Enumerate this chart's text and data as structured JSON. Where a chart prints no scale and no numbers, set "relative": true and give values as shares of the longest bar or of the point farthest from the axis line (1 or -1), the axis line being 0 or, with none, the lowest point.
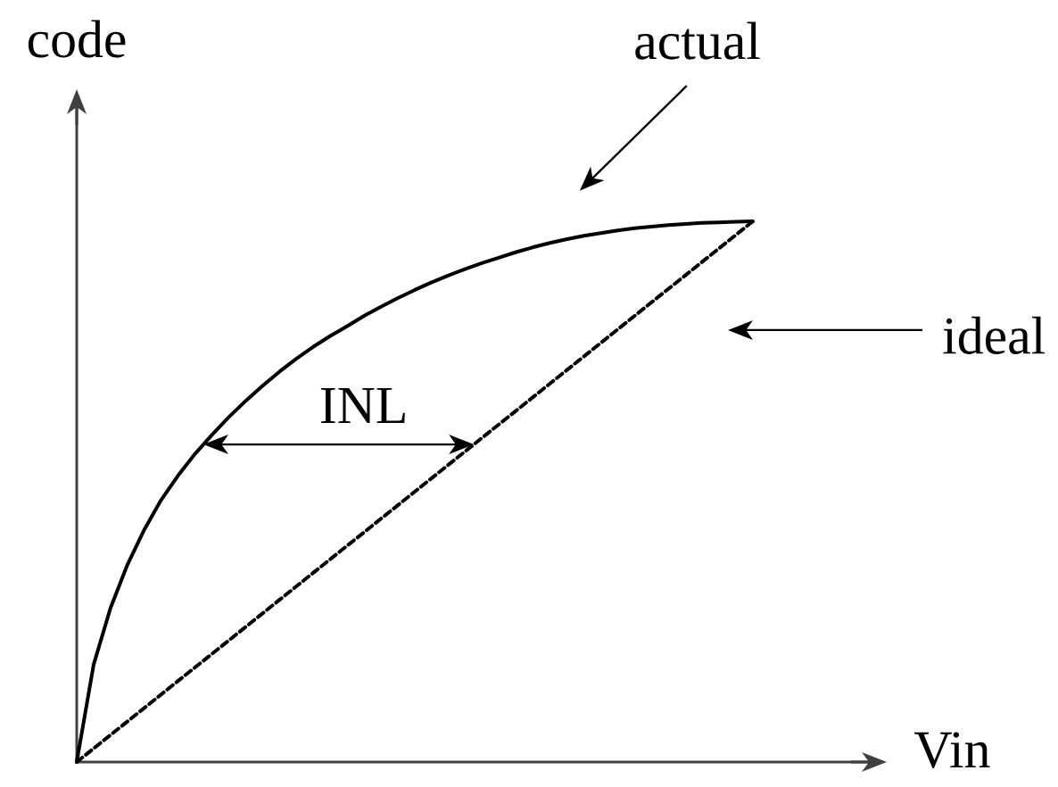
{
  "chart_data": {
    "type": "line",
    "relative": true,
    "xlabel": "Vin",
    "ylabel": "code",
    "categories": [
      null,
      null,
      null,
      null,
      null,
      null,
      null,
      null,
      null,
      null,
      null,
      null,
      null,
      null,
      null,
      null,
      null,
      null,
      null,
      null,
      null,
      null,
      null,
      null,
      null,
      null,
      null,
      null,
      null,
      null,
      null,
      null,
      null,
      null,
      null,
      null,
      null,
      null,
      null,
      null,
      null
    ],
    "series": [
      {
        "color": "#000000",
        "line_style": "solid",
        "values": [
          0,
          0.18,
          0.285,
          0.365,
          0.43,
          0.485,
          0.53,
          0.57,
          0.605,
          0.638,
          0.668,
          0.696,
          0.722,
          0.746,
          0.768,
          0.788,
          0.806,
          0.825,
          0.842,
          0.858,
          0.873,
          0.887,
          0.9,
          0.912,
          0.923,
          0.933,
          0.943,
          0.952,
          0.96,
          0.967,
          0.973,
          0.978,
          0.983,
          0.987,
          0.99,
          0.993,
          0.995,
          0.997,
          0.998,
          0.999,
          1
        ]
      },
      {
        "color": "#000000",
        "line_style": "dashed",
        "values": [
          0,
          0.025,
          0.05,
          0.075,
          0.1,
          0.125,
          0.15,
          0.175,
          0.2,
          0.225,
          0.25,
          0.275,
          0.3,
          0.325,
          0.35,
          0.375,
          0.4,
          0.425,
          0.45,
          0.475,
          0.5,
          0.525,
          0.55,
          0.575,
          0.6,
          0.625,
          0.65,
          0.675,
          0.7,
          0.725,
          0.75,
          0.775,
          0.8,
          0.825,
          0.85,
          0.875,
          0.9,
          0.925,
          0.95,
          0.975,
          1
        ]
      }
    ],
    "annotations": [
      "INL",
      "actual",
      "ideal"
    ]
  }
}
